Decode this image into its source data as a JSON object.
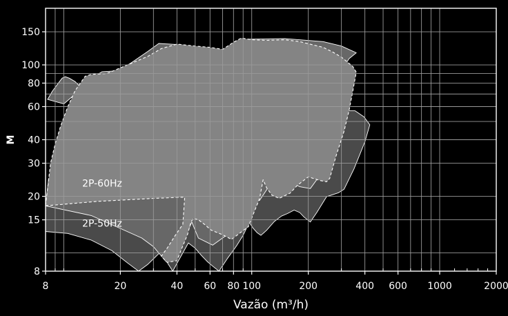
{
  "chart_data": {
    "type": "area",
    "title": "",
    "xlabel": "Vazão (m³/h)",
    "ylabel": "M",
    "x_scale": "log",
    "y_scale": "log",
    "xlim": [
      8,
      2000
    ],
    "ylim": [
      8,
      200
    ],
    "grid": true,
    "x_ticks": [
      8,
      20,
      40,
      60,
      80,
      100,
      200,
      400,
      600,
      1000,
      2000
    ],
    "y_ticks": [
      8,
      15,
      20,
      30,
      40,
      60,
      80,
      100,
      150
    ],
    "series": [
      {
        "name": "2P-50Hz",
        "style": "dark-gray region",
        "color": "#4a4a4a",
        "boundary": [
          [
            8,
            13
          ],
          [
            10.5,
            12.7
          ],
          [
            14,
            11.7
          ],
          [
            18,
            10.3
          ],
          [
            22,
            8.8
          ],
          [
            25,
            8
          ],
          [
            28,
            8.7
          ],
          [
            33,
            10.2
          ],
          [
            36,
            8.7
          ],
          [
            38,
            8
          ],
          [
            41,
            9.2
          ],
          [
            46,
            11.3
          ],
          [
            50,
            10.6
          ],
          [
            54,
            9.7
          ],
          [
            58,
            9
          ],
          [
            62,
            8.5
          ],
          [
            67,
            8
          ],
          [
            74,
            9.3
          ],
          [
            83,
            10.9
          ],
          [
            90,
            12.4
          ],
          [
            97,
            14.5
          ],
          [
            102,
            13.5
          ],
          [
            107,
            12.8
          ],
          [
            112,
            12.4
          ],
          [
            120,
            13.2
          ],
          [
            132,
            14.7
          ],
          [
            144,
            15.7
          ],
          [
            155,
            16.2
          ],
          [
            168,
            16.9
          ],
          [
            180,
            16.4
          ],
          [
            190,
            15.5
          ],
          [
            205,
            14.6
          ],
          [
            222,
            16.4
          ],
          [
            250,
            19.9
          ],
          [
            290,
            20.9
          ],
          [
            310,
            21.8
          ],
          [
            350,
            28
          ],
          [
            400,
            39
          ],
          [
            425,
            48
          ],
          [
            395,
            53
          ],
          [
            355,
            57
          ],
          [
            320,
            57
          ],
          [
            290,
            54
          ],
          [
            230,
            51
          ],
          [
            170,
            45
          ],
          [
            110,
            35
          ],
          [
            60,
            25
          ],
          [
            30,
            19.5
          ],
          [
            15,
            18.8
          ],
          [
            8,
            17.8
          ]
        ]
      },
      {
        "name": "2P-60Hz",
        "style": "medium-gray region",
        "color": "#676767",
        "boundary": [
          [
            8,
            17.8
          ],
          [
            8.3,
            24.9
          ],
          [
            9.2,
            25.5
          ],
          [
            10.3,
            29.8
          ],
          [
            11,
            33
          ],
          [
            11.7,
            37.5
          ],
          [
            12.5,
            42.5
          ],
          [
            13,
            45
          ],
          [
            14.5,
            44.4
          ],
          [
            16.5,
            49
          ],
          [
            18.5,
            54
          ],
          [
            21,
            59
          ],
          [
            20,
            64
          ],
          [
            18.5,
            70.5
          ],
          [
            17,
            75.5
          ],
          [
            16,
            78
          ],
          [
            14.5,
            76.5
          ],
          [
            13,
            78
          ],
          [
            12,
            78
          ],
          [
            11.5,
            81.5
          ],
          [
            10.7,
            85
          ],
          [
            10.2,
            86.5
          ],
          [
            9.8,
            85
          ],
          [
            9.4,
            80.5
          ],
          [
            8.7,
            72.5
          ],
          [
            8.2,
            65.5
          ],
          [
            10,
            62
          ],
          [
            12.5,
            75
          ],
          [
            14,
            85
          ],
          [
            16,
            92
          ],
          [
            19.5,
            93
          ],
          [
            23,
            103
          ],
          [
            28,
            118
          ],
          [
            32,
            130
          ],
          [
            42,
            128
          ],
          [
            55,
            122
          ],
          [
            75,
            117
          ],
          [
            95,
            137
          ],
          [
            150,
            138
          ],
          [
            240,
            133
          ],
          [
            300,
            126
          ],
          [
            360,
            116
          ],
          [
            330,
            108
          ],
          [
            310,
            98
          ],
          [
            300,
            82
          ],
          [
            290,
            62
          ],
          [
            260,
            44
          ],
          [
            240,
            32
          ],
          [
            225,
            25
          ],
          [
            205,
            22
          ],
          [
            180,
            22.5
          ],
          [
            160,
            24
          ],
          [
            150,
            27
          ],
          [
            135,
            25
          ],
          [
            125,
            23
          ],
          [
            110,
            19
          ],
          [
            100,
            19
          ],
          [
            90,
            17.5
          ],
          [
            83,
            15
          ],
          [
            74,
            12.5
          ],
          [
            62,
            11
          ],
          [
            52,
            12
          ],
          [
            48,
            14.6
          ],
          [
            40,
            9.7
          ],
          [
            35,
            9
          ],
          [
            30,
            10.8
          ],
          [
            26,
            12
          ],
          [
            20,
            13.5
          ],
          [
            14,
            15.8
          ],
          [
            8,
            17.8
          ]
        ]
      },
      {
        "name": "2P-60Hz",
        "style": "light-gray region",
        "color": "#848484",
        "boundary": [
          [
            8,
            17.8
          ],
          [
            15,
            18.8
          ],
          [
            30,
            19.5
          ],
          [
            44,
            19.8
          ],
          [
            43,
            14.2
          ],
          [
            39,
            12.3
          ],
          [
            35.5,
            10.6
          ],
          [
            33,
            9.6
          ],
          [
            35.5,
            8.9
          ],
          [
            40,
            9.1
          ],
          [
            42.5,
            10.6
          ],
          [
            45.5,
            12.5
          ],
          [
            47.5,
            14.6
          ],
          [
            49,
            15.3
          ],
          [
            52,
            15
          ],
          [
            56,
            14.2
          ],
          [
            61,
            13.2
          ],
          [
            70,
            12.5
          ],
          [
            78,
            11.8
          ],
          [
            86,
            12.7
          ],
          [
            96,
            13.8
          ],
          [
            103,
            16.5
          ],
          [
            110,
            19.4
          ],
          [
            115,
            24.5
          ],
          [
            120,
            22.2
          ],
          [
            128,
            20.3
          ],
          [
            140,
            19.5
          ],
          [
            160,
            20.8
          ],
          [
            175,
            22.9
          ],
          [
            200,
            25.4
          ],
          [
            230,
            24.3
          ],
          [
            250,
            23.9
          ],
          [
            260,
            24.9
          ],
          [
            280,
            32.4
          ],
          [
            310,
            44.4
          ],
          [
            330,
            57.5
          ],
          [
            345,
            72.5
          ],
          [
            360,
            91.5
          ],
          [
            345,
            98
          ],
          [
            325,
            103
          ],
          [
            300,
            110
          ],
          [
            270,
            117
          ],
          [
            240,
            124
          ],
          [
            210,
            128
          ],
          [
            180,
            133
          ],
          [
            150,
            136
          ],
          [
            120,
            135
          ],
          [
            100,
            136
          ],
          [
            88,
            139
          ],
          [
            80,
            132
          ],
          [
            70,
            121
          ],
          [
            60,
            124
          ],
          [
            50,
            126
          ],
          [
            40,
            129
          ],
          [
            33,
            122
          ],
          [
            28,
            111
          ],
          [
            24,
            104
          ],
          [
            20,
            96.5
          ],
          [
            17,
            90
          ],
          [
            14,
            89
          ],
          [
            13,
            87
          ],
          [
            11.5,
            73
          ],
          [
            10.5,
            60
          ],
          [
            9.6,
            47
          ],
          [
            9,
            38
          ],
          [
            8.5,
            30
          ],
          [
            8,
            17.8
          ]
        ]
      }
    ],
    "annotations": [
      {
        "text": "2P-60Hz",
        "x": 16,
        "y": 22.5
      },
      {
        "text": "2P-50Hz",
        "x": 16,
        "y": 13.8
      }
    ]
  }
}
